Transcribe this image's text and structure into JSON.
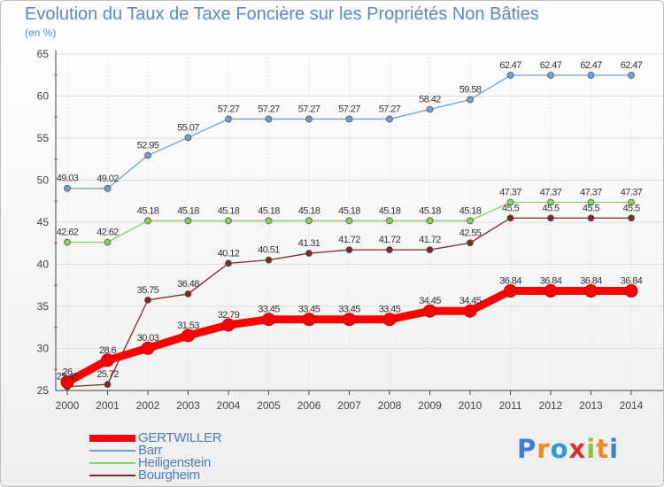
{
  "header": {
    "title": "Evolution du Taux de Taxe Foncière sur les Propriétés Non Bâties",
    "unit": "(en %)"
  },
  "colors": {
    "GERTWILLER": "#ff0000",
    "Barr": "#6fa0d0",
    "Heiligenstein": "#8fd060",
    "Bourgheim": "#7b2a2a",
    "text": "#5b88c2",
    "grid": "#dddddd",
    "axis": "#444444"
  },
  "chart_data": {
    "type": "line",
    "title": "Evolution du Taux de Taxe Foncière sur les Propriétés Non Bâties",
    "ylabel": "(en %)",
    "xlabel": "",
    "ylim": [
      25,
      65
    ],
    "yticks": [
      25,
      30,
      35,
      40,
      45,
      50,
      55,
      60,
      65
    ],
    "categories": [
      "2000",
      "2001",
      "2002",
      "2003",
      "2004",
      "2005",
      "2006",
      "2007",
      "2008",
      "2009",
      "2010",
      "2011",
      "2012",
      "2013",
      "2014"
    ],
    "grid": true,
    "legend_position": "bottom-left",
    "series": [
      {
        "name": "GERTWILLER",
        "values": [
          26,
          28.6,
          30.03,
          31.53,
          32.79,
          33.45,
          33.45,
          33.45,
          33.45,
          34.45,
          34.45,
          36.84,
          36.84,
          36.84,
          36.84
        ],
        "labels": [
          "26",
          "28.6",
          "30.03",
          "31.53",
          "32.79",
          "33.45",
          "33.45",
          "33.45",
          "33.45",
          "34.45",
          "34.45",
          "36.84",
          "36.84",
          "36.84",
          "36.84"
        ]
      },
      {
        "name": "Barr",
        "values": [
          49.03,
          49.02,
          52.95,
          55.07,
          57.27,
          57.27,
          57.27,
          57.27,
          57.27,
          58.42,
          59.58,
          62.47,
          62.47,
          62.47,
          62.47
        ],
        "labels": [
          "49.03",
          "49.02",
          "52.95",
          "55.07",
          "57.27",
          "57.27",
          "57.27",
          "57.27",
          "57.27",
          "58.42",
          "59.58",
          "62.47",
          "62.47",
          "62.47",
          "62.47"
        ]
      },
      {
        "name": "Heiligenstein",
        "values": [
          42.62,
          42.62,
          45.18,
          45.18,
          45.18,
          45.18,
          45.18,
          45.18,
          45.18,
          45.18,
          45.18,
          47.37,
          47.37,
          47.37,
          47.37
        ],
        "labels": [
          "42.62",
          "42.62",
          "45.18",
          "45.18",
          "45.18",
          "45.18",
          "45.18",
          "45.18",
          "45.18",
          "45.18",
          "45.18",
          "47.37",
          "47.37",
          "47.37",
          "47.37"
        ]
      },
      {
        "name": "Bourgheim",
        "values": [
          25.45,
          25.72,
          35.75,
          36.48,
          40.12,
          40.51,
          41.31,
          41.72,
          41.72,
          41.72,
          42.55,
          45.5,
          45.5,
          45.5,
          45.5
        ],
        "labels": [
          "25.45",
          "25.72",
          "35.75",
          "36.48",
          "40.12",
          "40.51",
          "41.31",
          "41.72",
          "41.72",
          "41.72",
          "42.55",
          "45.5",
          "45.5",
          "45.5",
          "45.5"
        ]
      }
    ]
  },
  "legend": {
    "items": [
      "GERTWILLER",
      "Barr",
      "Heiligenstein",
      "Bourgheim"
    ]
  },
  "logo": {
    "text": "Proxiti",
    "letters": [
      "P",
      "r",
      "o",
      "x",
      "i",
      "t",
      "i"
    ],
    "letter_colors": [
      "#3d7fd0",
      "#f08a1c",
      "#2a9bd8",
      "#d8302a",
      "#8cc63f",
      "#f08a1c",
      "#3d7fd0"
    ]
  }
}
